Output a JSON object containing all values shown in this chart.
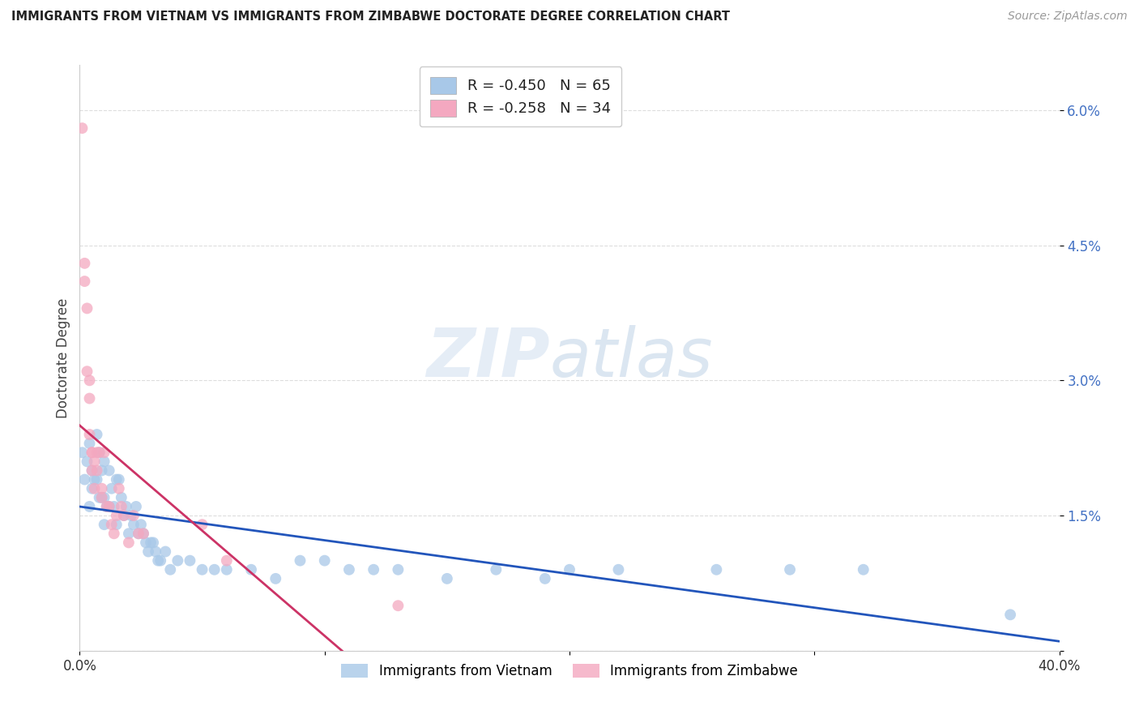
{
  "title": "IMMIGRANTS FROM VIETNAM VS IMMIGRANTS FROM ZIMBABWE DOCTORATE DEGREE CORRELATION CHART",
  "source": "Source: ZipAtlas.com",
  "ylabel": "Doctorate Degree",
  "legend_label1": "Immigrants from Vietnam",
  "legend_label2": "Immigrants from Zimbabwe",
  "legend_R1": "-0.450",
  "legend_N1": "65",
  "legend_R2": "-0.258",
  "legend_N2": "34",
  "color_vietnam": "#a8c8e8",
  "color_zimbabwe": "#f4a8c0",
  "color_line_vietnam": "#2255bb",
  "color_line_zimbabwe": "#cc3366",
  "color_line_zimbabwe_ext": "#e8b0c0",
  "background_color": "#ffffff",
  "grid_color": "#dddddd",
  "xlim": [
    0.0,
    0.4
  ],
  "ylim": [
    0.0,
    0.065
  ],
  "vietnam_x": [
    0.001,
    0.002,
    0.003,
    0.004,
    0.004,
    0.005,
    0.005,
    0.006,
    0.007,
    0.007,
    0.008,
    0.008,
    0.009,
    0.009,
    0.01,
    0.01,
    0.01,
    0.011,
    0.012,
    0.012,
    0.013,
    0.014,
    0.015,
    0.015,
    0.016,
    0.017,
    0.018,
    0.019,
    0.02,
    0.021,
    0.022,
    0.023,
    0.024,
    0.025,
    0.026,
    0.027,
    0.028,
    0.029,
    0.03,
    0.031,
    0.032,
    0.033,
    0.035,
    0.037,
    0.04,
    0.045,
    0.05,
    0.055,
    0.06,
    0.07,
    0.08,
    0.09,
    0.1,
    0.11,
    0.12,
    0.13,
    0.15,
    0.17,
    0.19,
    0.2,
    0.22,
    0.26,
    0.29,
    0.32,
    0.38
  ],
  "vietnam_y": [
    0.022,
    0.019,
    0.021,
    0.023,
    0.016,
    0.02,
    0.018,
    0.019,
    0.024,
    0.019,
    0.022,
    0.017,
    0.02,
    0.017,
    0.021,
    0.017,
    0.014,
    0.016,
    0.02,
    0.016,
    0.018,
    0.016,
    0.019,
    0.014,
    0.019,
    0.017,
    0.015,
    0.016,
    0.013,
    0.015,
    0.014,
    0.016,
    0.013,
    0.014,
    0.013,
    0.012,
    0.011,
    0.012,
    0.012,
    0.011,
    0.01,
    0.01,
    0.011,
    0.009,
    0.01,
    0.01,
    0.009,
    0.009,
    0.009,
    0.009,
    0.008,
    0.01,
    0.01,
    0.009,
    0.009,
    0.009,
    0.008,
    0.009,
    0.008,
    0.009,
    0.009,
    0.009,
    0.009,
    0.009,
    0.004
  ],
  "zimbabwe_x": [
    0.001,
    0.002,
    0.002,
    0.003,
    0.003,
    0.004,
    0.004,
    0.004,
    0.005,
    0.005,
    0.005,
    0.006,
    0.006,
    0.007,
    0.007,
    0.008,
    0.009,
    0.009,
    0.01,
    0.011,
    0.012,
    0.013,
    0.014,
    0.015,
    0.016,
    0.017,
    0.018,
    0.02,
    0.022,
    0.024,
    0.026,
    0.05,
    0.06,
    0.13
  ],
  "zimbabwe_y": [
    0.058,
    0.043,
    0.041,
    0.038,
    0.031,
    0.03,
    0.028,
    0.024,
    0.022,
    0.022,
    0.02,
    0.021,
    0.018,
    0.022,
    0.02,
    0.022,
    0.018,
    0.017,
    0.022,
    0.016,
    0.016,
    0.014,
    0.013,
    0.015,
    0.018,
    0.016,
    0.015,
    0.012,
    0.015,
    0.013,
    0.013,
    0.014,
    0.01,
    0.005
  ]
}
